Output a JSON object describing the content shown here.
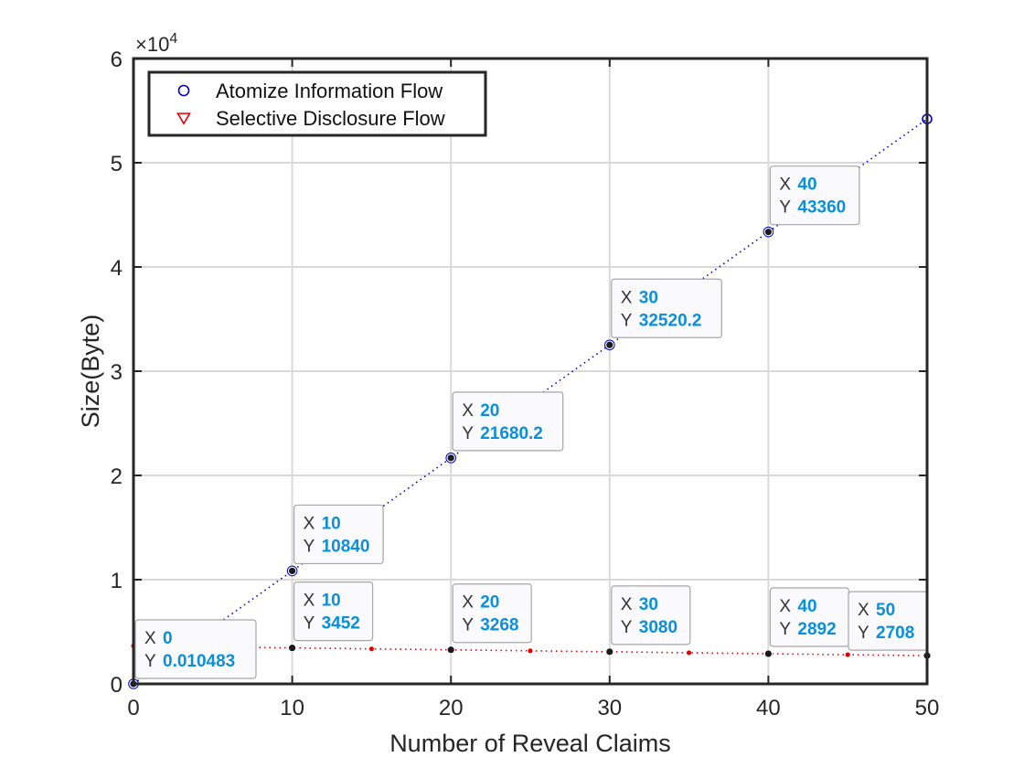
{
  "chart_data": {
    "type": "scatter",
    "xlabel": "Number of Reveal Claims",
    "ylabel": "Size(Byte)",
    "y_exponent_label": "×10",
    "y_exponent_power": "4",
    "xlim": [
      0,
      50
    ],
    "ylim": [
      0,
      60000
    ],
    "x_ticks": [
      0,
      10,
      20,
      30,
      40,
      50
    ],
    "x_tick_labels": [
      "0",
      "10",
      "20",
      "30",
      "40",
      "50"
    ],
    "y_ticks": [
      0,
      10000,
      20000,
      30000,
      40000,
      50000,
      60000
    ],
    "y_tick_labels": [
      "0",
      "1",
      "2",
      "3",
      "4",
      "5",
      "6"
    ],
    "grid": true,
    "legend_position": "top-left",
    "series": [
      {
        "name": "Atomize Information Flow",
        "marker": "circle",
        "color": "#0000cc",
        "x": [
          0,
          10,
          20,
          30,
          40,
          50
        ],
        "y": [
          0.010483,
          10840,
          21680.2,
          32520.2,
          43360,
          54200
        ]
      },
      {
        "name": "Selective Disclosure Flow",
        "marker": "triangle-down",
        "color": "#e60000",
        "x": [
          0,
          5,
          10,
          15,
          20,
          25,
          30,
          35,
          40,
          45,
          50
        ],
        "y": [
          3640,
          3546,
          3452,
          3360,
          3268,
          3174,
          3080,
          2986,
          2892,
          2800,
          2708
        ]
      }
    ],
    "datatips": [
      {
        "series": 0,
        "x": 0,
        "y": 0.010483,
        "x_label": "X",
        "y_label": "Y",
        "x_text": "0",
        "y_text": "0.010483"
      },
      {
        "series": 0,
        "x": 10,
        "y": 10840,
        "x_label": "X",
        "y_label": "Y",
        "x_text": "10",
        "y_text": "10840"
      },
      {
        "series": 0,
        "x": 20,
        "y": 21680.2,
        "x_label": "X",
        "y_label": "Y",
        "x_text": "20",
        "y_text": "21680.2"
      },
      {
        "series": 0,
        "x": 30,
        "y": 32520.2,
        "x_label": "X",
        "y_label": "Y",
        "x_text": "30",
        "y_text": "32520.2"
      },
      {
        "series": 0,
        "x": 40,
        "y": 43360,
        "x_label": "X",
        "y_label": "Y",
        "x_text": "40",
        "y_text": "43360"
      },
      {
        "series": 1,
        "x": 10,
        "y": 3452,
        "x_label": "X",
        "y_label": "Y",
        "x_text": "10",
        "y_text": "3452"
      },
      {
        "series": 1,
        "x": 20,
        "y": 3268,
        "x_label": "X",
        "y_label": "Y",
        "x_text": "20",
        "y_text": "3268"
      },
      {
        "series": 1,
        "x": 30,
        "y": 3080,
        "x_label": "X",
        "y_label": "Y",
        "x_text": "30",
        "y_text": "3080"
      },
      {
        "series": 1,
        "x": 40,
        "y": 2892,
        "x_label": "X",
        "y_label": "Y",
        "x_text": "40",
        "y_text": "2892"
      },
      {
        "series": 1,
        "x": 50,
        "y": 2708,
        "x_label": "X",
        "y_label": "Y",
        "x_text": "50",
        "y_text": "2708"
      }
    ],
    "colors": {
      "axis": "#262626",
      "grid": "#d9d9d9",
      "tip_value": "#0a8fdc",
      "tip_label": "#333333",
      "tip_bg": "#fafafc",
      "tip_border": "#a6a6a6",
      "tip_dot": "#1a1a1a"
    }
  }
}
